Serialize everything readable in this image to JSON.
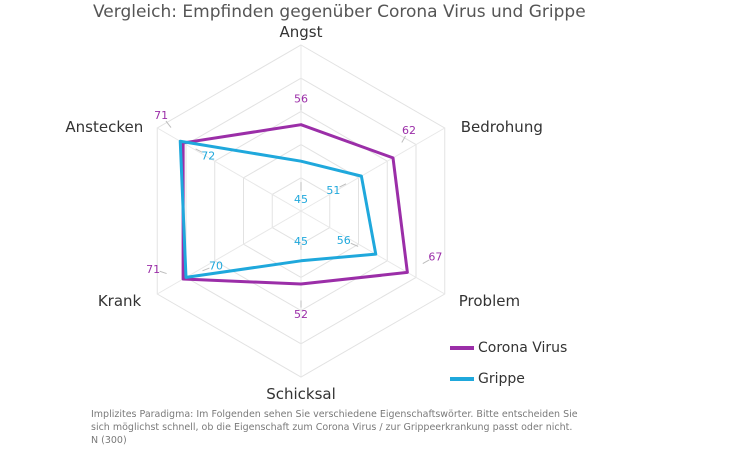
{
  "chart_data": {
    "type": "radar",
    "title": "Vergleich: Empfinden gegenüber Corona Virus und Grippe",
    "categories": [
      "Angst",
      "Bedrohung",
      "Problem",
      "Schicksal",
      "Krank",
      "Anstecken"
    ],
    "series": [
      {
        "name": "Corona Virus",
        "color": "#9b2ea8",
        "values": [
          56,
          62,
          67,
          52,
          71,
          71
        ]
      },
      {
        "name": "Grippe",
        "color": "#1fa8dc",
        "values": [
          45,
          51,
          56,
          45,
          70,
          72
        ]
      }
    ],
    "rlim": [
      30,
      80
    ],
    "grid": true,
    "legend": "bottom-right"
  },
  "footnote": [
    "Implizites Paradigma: Im Folgenden sehen Sie verschiedene Eigenschaftswörter. Bitte entscheiden Sie",
    "sich möglichst schnell, ob die Eigenschaft zum Corona Virus / zur Grippeerkrankung passt oder nicht.",
    "N (300)"
  ]
}
